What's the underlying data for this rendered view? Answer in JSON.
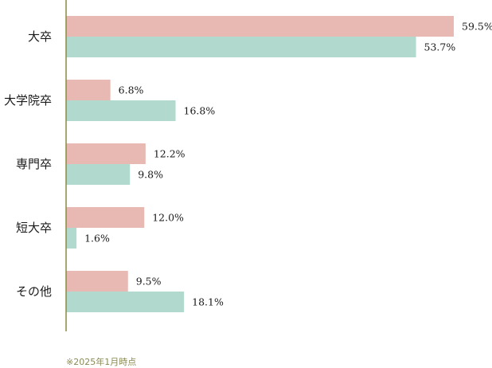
{
  "chart_data": {
    "type": "bar",
    "orientation": "horizontal",
    "categories": [
      "大卒",
      "大学院卒",
      "専門卒",
      "短大卒",
      "その他"
    ],
    "series": [
      {
        "values": [
          59.5,
          6.8,
          12.2,
          12.0,
          9.5
        ],
        "labels": [
          "59.5%",
          "6.8%",
          "12.2%",
          "12.0%",
          "9.5%"
        ],
        "color": "#e8b9b3"
      },
      {
        "values": [
          53.7,
          16.8,
          9.8,
          1.6,
          18.1
        ],
        "labels": [
          "53.7%",
          "16.8%",
          "9.8%",
          "1.6%",
          "18.1%"
        ],
        "color": "#b2d9cd"
      }
    ],
    "xlim": [
      0,
      65
    ],
    "grid": false,
    "legend": "none",
    "axis_color": "#8a8a40"
  },
  "note": "※2025年1月時点"
}
